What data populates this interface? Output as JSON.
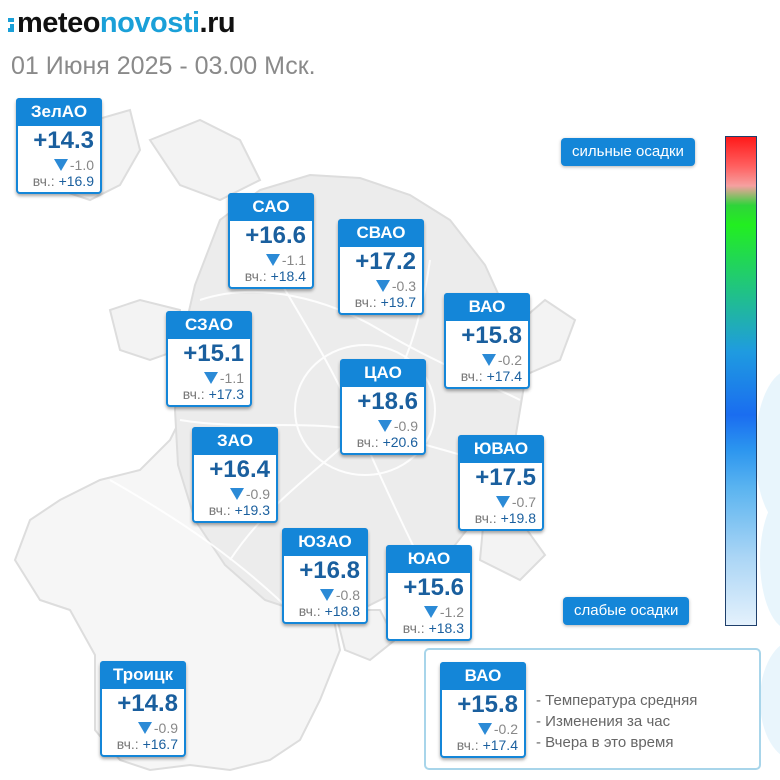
{
  "header": {
    "logo_part1": "meteo",
    "logo_part2": "novosti",
    "logo_part3": ".ru",
    "subtitle": "01 Июня 2025 - 03.00 Мск."
  },
  "districts": [
    {
      "name": "ЗелАО",
      "temp": "+14.3",
      "change": "-1.0",
      "yest_prefix": "вч.:",
      "yest": "+16.9"
    },
    {
      "name": "САО",
      "temp": "+16.6",
      "change": "-1.1",
      "yest_prefix": "вч.:",
      "yest": "+18.4"
    },
    {
      "name": "СВАО",
      "temp": "+17.2",
      "change": "-0.3",
      "yest_prefix": "вч.:",
      "yest": "+19.7"
    },
    {
      "name": "ВАО",
      "temp": "+15.8",
      "change": "-0.2",
      "yest_prefix": "вч.:",
      "yest": "+17.4"
    },
    {
      "name": "СЗАО",
      "temp": "+15.1",
      "change": "-1.1",
      "yest_prefix": "вч.:",
      "yest": "+17.3"
    },
    {
      "name": "ЦАО",
      "temp": "+18.6",
      "change": "-0.9",
      "yest_prefix": "вч.:",
      "yest": "+20.6"
    },
    {
      "name": "ЗАО",
      "temp": "+16.4",
      "change": "-0.9",
      "yest_prefix": "вч.:",
      "yest": "+19.3"
    },
    {
      "name": "ЮВАО",
      "temp": "+17.5",
      "change": "-0.7",
      "yest_prefix": "вч.:",
      "yest": "+19.8"
    },
    {
      "name": "ЮЗАО",
      "temp": "+16.8",
      "change": "-0.8",
      "yest_prefix": "вч.:",
      "yest": "+18.8"
    },
    {
      "name": "ЮАО",
      "temp": "+15.6",
      "change": "-1.2",
      "yest_prefix": "вч.:",
      "yest": "+18.3"
    },
    {
      "name": "Троицк",
      "temp": "+14.8",
      "change": "-0.9",
      "yest_prefix": "вч.:",
      "yest": "+16.7"
    }
  ],
  "precip_scale": {
    "top_label": "сильные осадки",
    "bottom_label": "слабые осадки",
    "colors": [
      "#ff1a1a",
      "#2fd43a",
      "#1a6df0",
      "#e4f1fc"
    ]
  },
  "legend": {
    "sample": {
      "name": "ВАО",
      "temp": "+15.8",
      "change": "-0.2",
      "yest_prefix": "вч.:",
      "yest": "+17.4"
    },
    "line1": "- Температура средняя",
    "line2": "- Изменения за час",
    "line3": "- Вчера в это время"
  },
  "colors": {
    "accent_blue": "#1486d8",
    "logo_blue": "#1aa0d8",
    "temp_text": "#1a5f9e",
    "down_arrow": "#2b8ad6"
  },
  "icons": {
    "logo": "logo-mark-icon",
    "change": "triangle-down-icon"
  }
}
